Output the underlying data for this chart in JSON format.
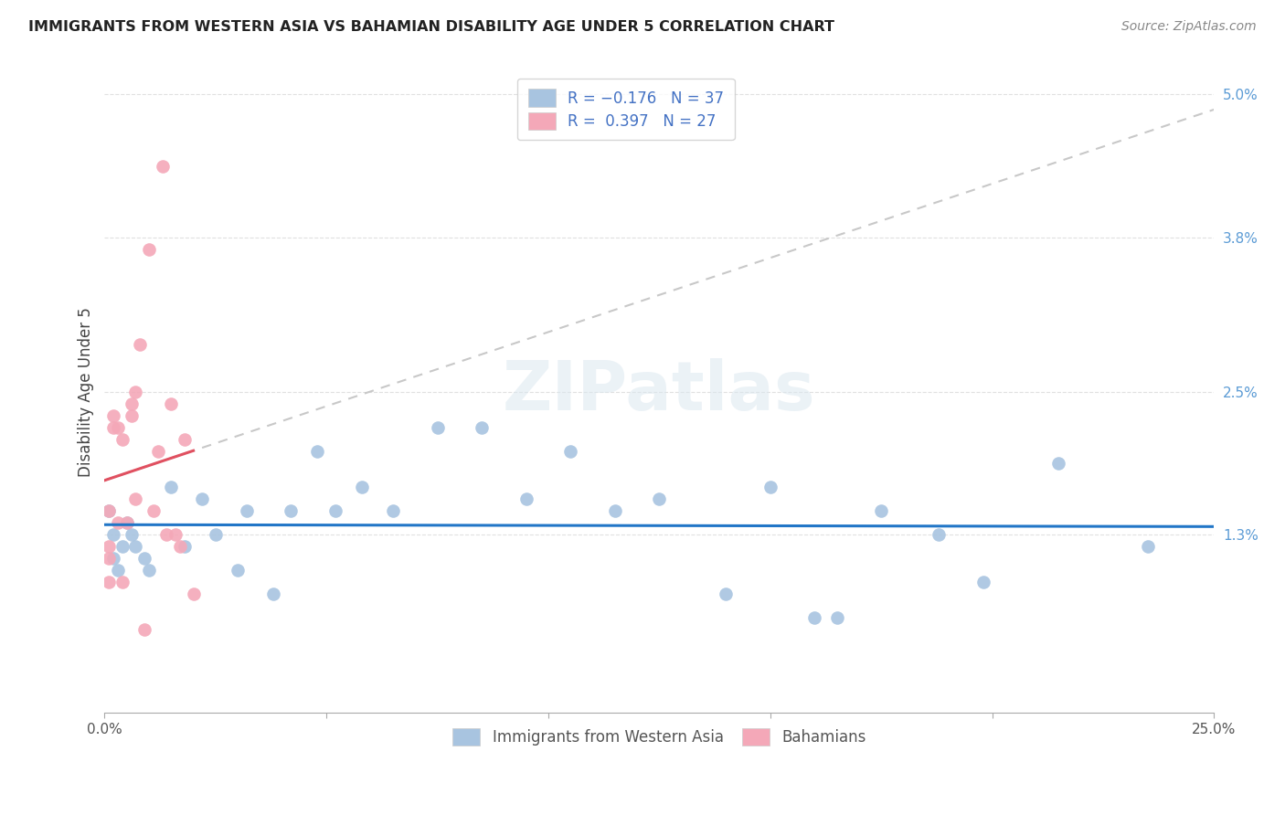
{
  "title": "IMMIGRANTS FROM WESTERN ASIA VS BAHAMIAN DISABILITY AGE UNDER 5 CORRELATION CHART",
  "source": "Source: ZipAtlas.com",
  "ylabel": "Disability Age Under 5",
  "xlim": [
    0.0,
    0.25
  ],
  "ylim": [
    -0.002,
    0.052
  ],
  "ydata_min": 0.0,
  "ydata_max": 0.05,
  "xtick_positions": [
    0.0,
    0.05,
    0.1,
    0.15,
    0.2,
    0.25
  ],
  "xtick_labels": [
    "0.0%",
    "",
    "",
    "",
    "",
    "25.0%"
  ],
  "ytick_positions": [
    0.0,
    0.013,
    0.025,
    0.038,
    0.05
  ],
  "ytick_labels_right": [
    "",
    "1.3%",
    "2.5%",
    "3.8%",
    "5.0%"
  ],
  "r_blue": -0.176,
  "n_blue": 37,
  "r_pink": 0.397,
  "n_pink": 27,
  "blue_color": "#a8c4e0",
  "pink_color": "#f4a8b8",
  "trend_blue_color": "#2176c7",
  "trend_pink_color": "#e05060",
  "trend_pink_dash_color": "#c8c8c8",
  "blue_scatter_x": [
    0.001,
    0.002,
    0.002,
    0.003,
    0.004,
    0.005,
    0.006,
    0.007,
    0.009,
    0.01,
    0.015,
    0.018,
    0.022,
    0.025,
    0.03,
    0.032,
    0.038,
    0.042,
    0.048,
    0.052,
    0.058,
    0.065,
    0.075,
    0.085,
    0.095,
    0.105,
    0.115,
    0.125,
    0.14,
    0.15,
    0.16,
    0.165,
    0.175,
    0.188,
    0.198,
    0.215,
    0.235
  ],
  "blue_scatter_y": [
    0.015,
    0.013,
    0.011,
    0.01,
    0.012,
    0.014,
    0.013,
    0.012,
    0.011,
    0.01,
    0.017,
    0.012,
    0.016,
    0.013,
    0.01,
    0.015,
    0.008,
    0.015,
    0.02,
    0.015,
    0.017,
    0.015,
    0.022,
    0.022,
    0.016,
    0.02,
    0.015,
    0.016,
    0.008,
    0.017,
    0.006,
    0.006,
    0.015,
    0.013,
    0.009,
    0.019,
    0.012
  ],
  "pink_scatter_x": [
    0.001,
    0.001,
    0.001,
    0.001,
    0.002,
    0.002,
    0.003,
    0.003,
    0.004,
    0.004,
    0.005,
    0.006,
    0.006,
    0.007,
    0.007,
    0.008,
    0.009,
    0.01,
    0.011,
    0.012,
    0.013,
    0.014,
    0.015,
    0.016,
    0.017,
    0.018,
    0.02
  ],
  "pink_scatter_y": [
    0.015,
    0.012,
    0.011,
    0.009,
    0.023,
    0.022,
    0.014,
    0.022,
    0.021,
    0.009,
    0.014,
    0.023,
    0.024,
    0.025,
    0.016,
    0.029,
    0.005,
    0.037,
    0.015,
    0.02,
    0.044,
    0.013,
    0.024,
    0.013,
    0.012,
    0.021,
    0.008
  ],
  "watermark": "ZIPatlas",
  "grid_color": "#e0e0e0",
  "spine_color": "#cccccc"
}
